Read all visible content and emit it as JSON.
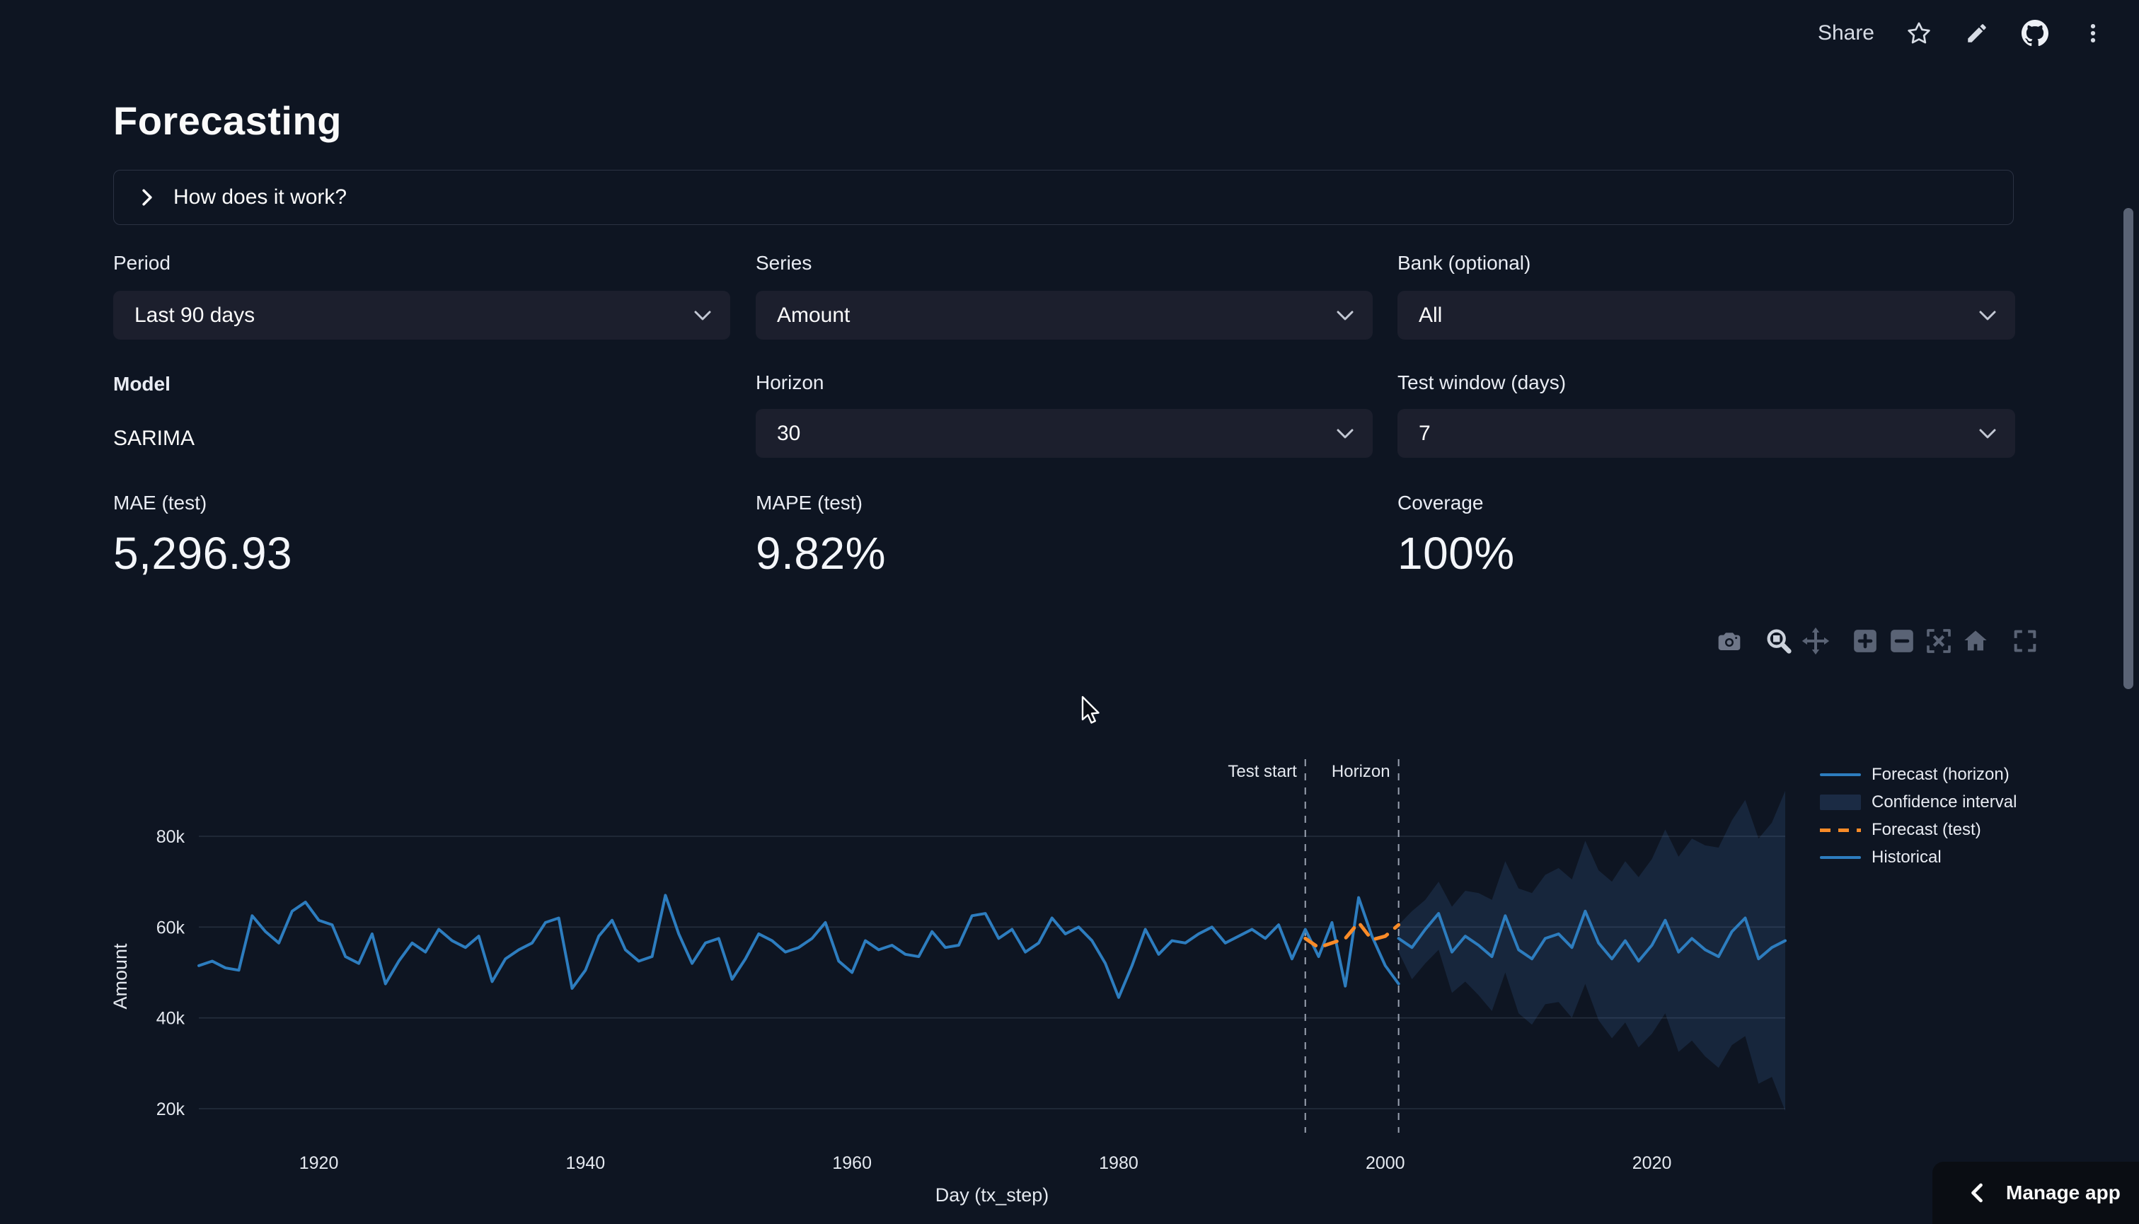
{
  "header": {
    "share_label": "Share",
    "icons": [
      "star-icon",
      "edit-pencil-icon",
      "github-icon",
      "overflow-menu-icon"
    ]
  },
  "page": {
    "title": "Forecasting"
  },
  "expander": {
    "label": "How does it work?"
  },
  "controls": {
    "period": {
      "label": "Period",
      "value": "Last 90 days"
    },
    "series": {
      "label": "Series",
      "value": "Amount"
    },
    "bank": {
      "label": "Bank (optional)",
      "value": "All"
    },
    "model": {
      "label": "Model",
      "value": "SARIMA"
    },
    "horizon": {
      "label": "Horizon",
      "value": "30"
    },
    "test_window": {
      "label": "Test window (days)",
      "value": "7"
    }
  },
  "metrics": [
    {
      "label": "MAE (test)",
      "value": "5,296.93"
    },
    {
      "label": "MAPE (test)",
      "value": "9.82%"
    },
    {
      "label": "Coverage",
      "value": "100%"
    }
  ],
  "toolbar": {
    "icons": [
      "camera-download-icon",
      "zoom-box-icon",
      "pan-icon",
      "zoom-in-icon",
      "zoom-out-icon",
      "autoscale-icon",
      "reset-home-icon",
      "fullscreen-icon"
    ]
  },
  "footer": {
    "manage_app_label": "Manage app"
  },
  "chart_data": {
    "type": "line",
    "title": "",
    "xlabel": "Day (tx_step)",
    "ylabel": "Amount",
    "xlim": [
      1911,
      2030
    ],
    "ylim": [
      15000,
      96000
    ],
    "grid": "horizontal-only",
    "legend_position": "right",
    "x_ticks": [
      1920,
      1940,
      1960,
      1980,
      2000,
      2020
    ],
    "y_ticks": [
      {
        "value": 20000,
        "label": "20k"
      },
      {
        "value": 40000,
        "label": "40k"
      },
      {
        "value": 60000,
        "label": "60k"
      },
      {
        "value": 80000,
        "label": "80k"
      }
    ],
    "vlines": [
      {
        "label": "Test start",
        "x": 1994
      },
      {
        "label": "Horizon",
        "x": 2001
      }
    ],
    "series": [
      {
        "name": "Historical",
        "kind": "line",
        "color": "#2d7dbf",
        "x_start": 1911,
        "x_step": 1,
        "y": [
          51500,
          52500,
          51000,
          50500,
          62500,
          59000,
          56500,
          63500,
          65500,
          61500,
          60500,
          53500,
          52000,
          58500,
          47500,
          52500,
          56500,
          54500,
          59500,
          57000,
          55500,
          58000,
          48000,
          53000,
          55000,
          56500,
          61000,
          62000,
          46500,
          50500,
          58000,
          61500,
          55000,
          52500,
          53500,
          67000,
          58500,
          52000,
          56500,
          57500,
          48500,
          53000,
          58500,
          57000,
          54500,
          55500,
          57500,
          61000,
          52500,
          50000,
          57000,
          55000,
          56000,
          54000,
          53500,
          59000,
          55500,
          56000,
          62500,
          63000,
          57500,
          59500,
          54500,
          56500,
          62000,
          58500,
          60000,
          57000,
          52000,
          44500,
          51500,
          59500,
          54000,
          57000,
          56500,
          58500,
          60000,
          56500,
          58000,
          59500,
          57500,
          60500,
          53000,
          59500,
          53500,
          61000,
          47000,
          66500,
          58000,
          51500,
          47500
        ]
      },
      {
        "name": "Forecast (test)",
        "kind": "dashed-line",
        "color": "#f98b28",
        "x_start": 1994,
        "x_step": 1,
        "y": [
          57500,
          55500,
          56500,
          57500,
          61000,
          57200,
          58000,
          60500
        ]
      },
      {
        "name": "Forecast (horizon)",
        "kind": "line",
        "color": "#2d7dbf",
        "x_start": 2001,
        "x_step": 1,
        "y": [
          57500,
          55500,
          59500,
          63000,
          54500,
          58000,
          56000,
          53500,
          62500,
          55000,
          53000,
          57500,
          58500,
          55500,
          63500,
          56500,
          53000,
          57000,
          52500,
          56000,
          61500,
          54500,
          57500,
          55000,
          53500,
          59000,
          62000,
          53000,
          55500,
          57000
        ]
      },
      {
        "name": "Confidence interval",
        "kind": "band",
        "color": "rgba(72,131,199,0.16)",
        "x_start": 2001,
        "x_step": 1,
        "upper": [
          60500,
          63500,
          66000,
          70000,
          64500,
          68000,
          67500,
          66000,
          74500,
          68500,
          67500,
          71500,
          73000,
          70500,
          79000,
          72500,
          70000,
          74500,
          71000,
          75000,
          81500,
          75500,
          79500,
          78000,
          77500,
          83500,
          88000,
          79500,
          83000,
          90000
        ],
        "lower": [
          54500,
          48500,
          52000,
          55000,
          45500,
          48000,
          45000,
          41500,
          50000,
          41000,
          38500,
          43000,
          43500,
          40000,
          47500,
          39500,
          35500,
          39000,
          33500,
          36500,
          41000,
          32500,
          35000,
          31500,
          29000,
          34000,
          36000,
          25500,
          27000,
          19500
        ]
      }
    ],
    "legend": [
      {
        "label": "Forecast (horizon)",
        "swatch": "line",
        "color": "#2d7dbf"
      },
      {
        "label": "Confidence interval",
        "swatch": "band",
        "color": "#1b2b44"
      },
      {
        "label": "Forecast (test)",
        "swatch": "dashed-line",
        "color": "#f98b28"
      },
      {
        "label": "Historical",
        "swatch": "line",
        "color": "#2d7dbf"
      }
    ]
  }
}
